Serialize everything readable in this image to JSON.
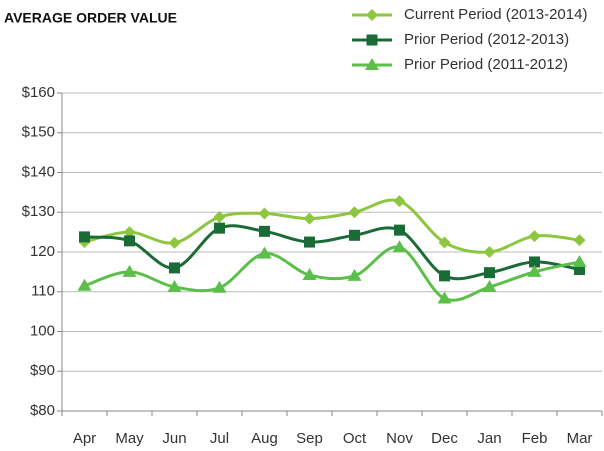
{
  "chart_data": {
    "type": "line",
    "title": "AVERAGE ORDER VALUE",
    "categories": [
      "Apr",
      "May",
      "Jun",
      "Jul",
      "Aug",
      "Sep",
      "Oct",
      "Nov",
      "Dec",
      "Jan",
      "Feb",
      "Mar"
    ],
    "series": [
      {
        "name": "Current Period (2013-2014)",
        "color": "#8dc63f",
        "marker": "diamond",
        "values": [
          122.5,
          125,
          122.3,
          128.8,
          129.7,
          128.4,
          130,
          132.8,
          122.4,
          120,
          124,
          123
        ]
      },
      {
        "name": "Prior Period (2012-2013)",
        "color": "#1b6b36",
        "marker": "square",
        "values": [
          123.8,
          122.8,
          116,
          126,
          125.2,
          122.5,
          124.2,
          125.5,
          114,
          114.8,
          117.5,
          115.6
        ]
      },
      {
        "name": "Prior Period (2011-2012)",
        "color": "#5cbf4a",
        "marker": "triangle",
        "values": [
          111.5,
          115,
          111.2,
          111,
          119.6,
          114.2,
          114,
          121.2,
          108.3,
          111.2,
          115,
          117.5
        ]
      }
    ],
    "ylim": [
      80,
      160
    ],
    "yticks": [
      {
        "value": 80,
        "label": "$80"
      },
      {
        "value": 90,
        "label": "$90"
      },
      100,
      110,
      120,
      {
        "value": 130,
        "label": "$130"
      },
      {
        "value": 140,
        "label": "$140"
      },
      {
        "value": 150,
        "label": "$150"
      },
      {
        "value": 160,
        "label": "$160"
      }
    ],
    "grid": true,
    "legend": "top-right"
  }
}
